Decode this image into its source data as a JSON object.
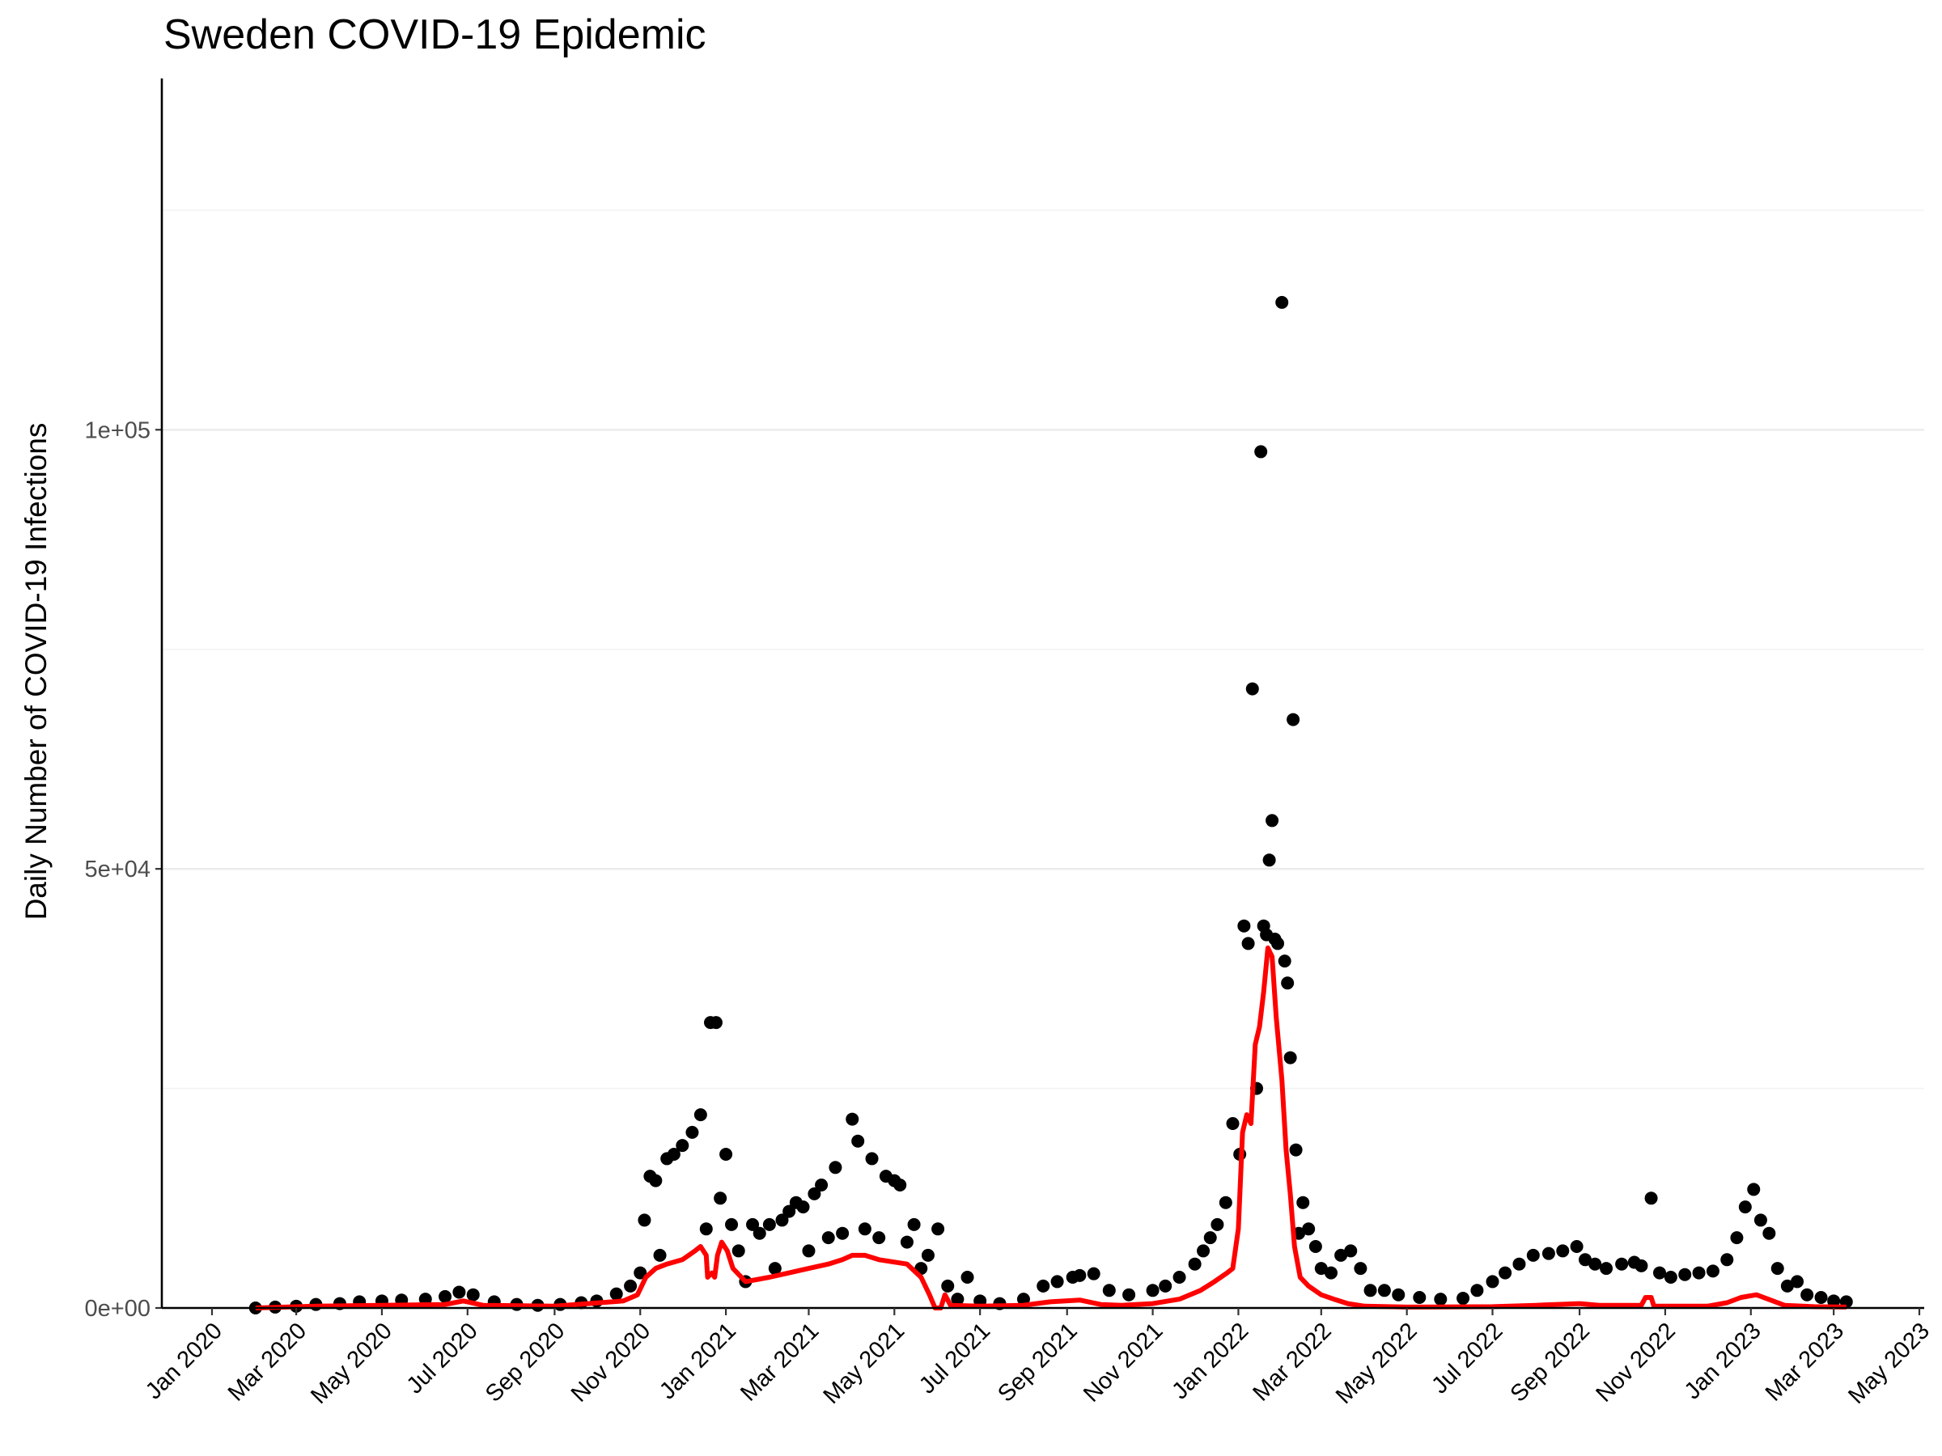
{
  "chart_data": {
    "type": "scatter",
    "title": "Sweden COVID-19 Epidemic",
    "ylabel": "Daily Number of COVID-19 Infections",
    "xlabel": "",
    "xlim": [
      "2020-01-01",
      "2023-05-01"
    ],
    "ylim": [
      0,
      140000
    ],
    "y_ticks": [
      {
        "value": 0,
        "label": "0e+00"
      },
      {
        "value": 50000,
        "label": "5e+04"
      },
      {
        "value": 100000,
        "label": "1e+05"
      }
    ],
    "y_minor": [
      25000,
      75000,
      125000
    ],
    "x_ticks": [
      {
        "date": "2020-01-01",
        "label": "Jan 2020"
      },
      {
        "date": "2020-03-01",
        "label": "Mar 2020"
      },
      {
        "date": "2020-05-01",
        "label": "May 2020"
      },
      {
        "date": "2020-07-01",
        "label": "Jul 2020"
      },
      {
        "date": "2020-09-01",
        "label": "Sep 2020"
      },
      {
        "date": "2020-11-01",
        "label": "Nov 2020"
      },
      {
        "date": "2021-01-01",
        "label": "Jan 2021"
      },
      {
        "date": "2021-03-01",
        "label": "Mar 2021"
      },
      {
        "date": "2021-05-01",
        "label": "May 2021"
      },
      {
        "date": "2021-07-01",
        "label": "Jul 2021"
      },
      {
        "date": "2021-09-01",
        "label": "Sep 2021"
      },
      {
        "date": "2021-11-01",
        "label": "Nov 2021"
      },
      {
        "date": "2022-01-01",
        "label": "Jan 2022"
      },
      {
        "date": "2022-03-01",
        "label": "Mar 2022"
      },
      {
        "date": "2022-05-01",
        "label": "May 2022"
      },
      {
        "date": "2022-07-01",
        "label": "Jul 2022"
      },
      {
        "date": "2022-09-01",
        "label": "Sep 2022"
      },
      {
        "date": "2022-11-01",
        "label": "Nov 2022"
      },
      {
        "date": "2023-01-01",
        "label": "Jan 2023"
      },
      {
        "date": "2023-03-01",
        "label": "Mar 2023"
      },
      {
        "date": "2023-05-01",
        "label": "May 2023"
      }
    ],
    "grid": "horizontal",
    "series": [
      {
        "kind": "points",
        "color": "#000000",
        "points": [
          [
            "2020-02-01",
            0
          ],
          [
            "2020-02-15",
            100
          ],
          [
            "2020-03-01",
            200
          ],
          [
            "2020-03-15",
            400
          ],
          [
            "2020-04-01",
            500
          ],
          [
            "2020-04-15",
            700
          ],
          [
            "2020-05-01",
            800
          ],
          [
            "2020-05-15",
            900
          ],
          [
            "2020-06-01",
            1000
          ],
          [
            "2020-06-15",
            1300
          ],
          [
            "2020-06-25",
            1800
          ],
          [
            "2020-07-05",
            1500
          ],
          [
            "2020-07-20",
            700
          ],
          [
            "2020-08-05",
            400
          ],
          [
            "2020-08-20",
            300
          ],
          [
            "2020-09-05",
            400
          ],
          [
            "2020-09-20",
            600
          ],
          [
            "2020-10-01",
            800
          ],
          [
            "2020-10-15",
            1600
          ],
          [
            "2020-10-25",
            2500
          ],
          [
            "2020-11-01",
            4000
          ],
          [
            "2020-11-04",
            10000
          ],
          [
            "2020-11-08",
            15000
          ],
          [
            "2020-11-12",
            14500
          ],
          [
            "2020-11-15",
            6000
          ],
          [
            "2020-11-20",
            17000
          ],
          [
            "2020-11-25",
            17500
          ],
          [
            "2020-12-01",
            18500
          ],
          [
            "2020-12-08",
            20000
          ],
          [
            "2020-12-14",
            22000
          ],
          [
            "2020-12-18",
            9000
          ],
          [
            "2020-12-21",
            32500
          ],
          [
            "2020-12-25",
            32500
          ],
          [
            "2020-12-28",
            12500
          ],
          [
            "2021-01-01",
            17500
          ],
          [
            "2021-01-05",
            9500
          ],
          [
            "2021-01-10",
            6500
          ],
          [
            "2021-01-15",
            3000
          ],
          [
            "2021-01-20",
            9500
          ],
          [
            "2021-01-25",
            8500
          ],
          [
            "2021-02-01",
            9500
          ],
          [
            "2021-02-05",
            4500
          ],
          [
            "2021-02-10",
            10000
          ],
          [
            "2021-02-15",
            11000
          ],
          [
            "2021-02-20",
            12000
          ],
          [
            "2021-02-25",
            11500
          ],
          [
            "2021-03-01",
            6500
          ],
          [
            "2021-03-05",
            13000
          ],
          [
            "2021-03-10",
            14000
          ],
          [
            "2021-03-15",
            8000
          ],
          [
            "2021-03-20",
            16000
          ],
          [
            "2021-03-25",
            8500
          ],
          [
            "2021-04-01",
            21500
          ],
          [
            "2021-04-05",
            19000
          ],
          [
            "2021-04-10",
            9000
          ],
          [
            "2021-04-15",
            17000
          ],
          [
            "2021-04-20",
            8000
          ],
          [
            "2021-04-25",
            15000
          ],
          [
            "2021-05-01",
            14500
          ],
          [
            "2021-05-05",
            14000
          ],
          [
            "2021-05-10",
            7500
          ],
          [
            "2021-05-15",
            9500
          ],
          [
            "2021-05-20",
            4500
          ],
          [
            "2021-05-25",
            6000
          ],
          [
            "2021-06-01",
            9000
          ],
          [
            "2021-06-08",
            2500
          ],
          [
            "2021-06-15",
            1000
          ],
          [
            "2021-06-22",
            3500
          ],
          [
            "2021-07-01",
            800
          ],
          [
            "2021-07-15",
            500
          ],
          [
            "2021-08-01",
            1000
          ],
          [
            "2021-08-15",
            2500
          ],
          [
            "2021-08-25",
            3000
          ],
          [
            "2021-09-05",
            3500
          ],
          [
            "2021-09-10",
            3700
          ],
          [
            "2021-09-20",
            3900
          ],
          [
            "2021-10-01",
            2000
          ],
          [
            "2021-10-15",
            1500
          ],
          [
            "2021-11-01",
            2000
          ],
          [
            "2021-11-10",
            2500
          ],
          [
            "2021-11-20",
            3500
          ],
          [
            "2021-12-01",
            5000
          ],
          [
            "2021-12-07",
            6500
          ],
          [
            "2021-12-12",
            8000
          ],
          [
            "2021-12-17",
            9500
          ],
          [
            "2021-12-23",
            12000
          ],
          [
            "2021-12-28",
            21000
          ],
          [
            "2022-01-02",
            17500
          ],
          [
            "2022-01-05",
            43500
          ],
          [
            "2022-01-08",
            41500
          ],
          [
            "2022-01-11",
            70500
          ],
          [
            "2022-01-14",
            25000
          ],
          [
            "2022-01-17",
            97500
          ],
          [
            "2022-01-19",
            43500
          ],
          [
            "2022-01-21",
            42500
          ],
          [
            "2022-01-23",
            51000
          ],
          [
            "2022-01-25",
            55500
          ],
          [
            "2022-01-27",
            42000
          ],
          [
            "2022-01-29",
            41500
          ],
          [
            "2022-02-01",
            114500
          ],
          [
            "2022-02-03",
            39500
          ],
          [
            "2022-02-05",
            37000
          ],
          [
            "2022-02-07",
            28500
          ],
          [
            "2022-02-09",
            67000
          ],
          [
            "2022-02-11",
            18000
          ],
          [
            "2022-02-13",
            8500
          ],
          [
            "2022-02-16",
            12000
          ],
          [
            "2022-02-20",
            9000
          ],
          [
            "2022-02-25",
            7000
          ],
          [
            "2022-03-01",
            4500
          ],
          [
            "2022-03-08",
            4000
          ],
          [
            "2022-03-15",
            6000
          ],
          [
            "2022-03-22",
            6500
          ],
          [
            "2022-03-29",
            4500
          ],
          [
            "2022-04-05",
            2000
          ],
          [
            "2022-04-15",
            2000
          ],
          [
            "2022-04-25",
            1500
          ],
          [
            "2022-05-10",
            1200
          ],
          [
            "2022-05-25",
            1000
          ],
          [
            "2022-06-10",
            1100
          ],
          [
            "2022-06-20",
            2000
          ],
          [
            "2022-07-01",
            3000
          ],
          [
            "2022-07-10",
            4000
          ],
          [
            "2022-07-20",
            5000
          ],
          [
            "2022-07-30",
            6000
          ],
          [
            "2022-08-10",
            6200
          ],
          [
            "2022-08-20",
            6500
          ],
          [
            "2022-08-30",
            7000
          ],
          [
            "2022-09-05",
            5500
          ],
          [
            "2022-09-12",
            5000
          ],
          [
            "2022-09-20",
            4500
          ],
          [
            "2022-10-01",
            5000
          ],
          [
            "2022-10-10",
            5200
          ],
          [
            "2022-10-15",
            4800
          ],
          [
            "2022-10-22",
            12500
          ],
          [
            "2022-10-28",
            4000
          ],
          [
            "2022-11-05",
            3500
          ],
          [
            "2022-11-15",
            3800
          ],
          [
            "2022-11-25",
            4000
          ],
          [
            "2022-12-05",
            4200
          ],
          [
            "2022-12-15",
            5500
          ],
          [
            "2022-12-22",
            8000
          ],
          [
            "2022-12-28",
            11500
          ],
          [
            "2023-01-03",
            13500
          ],
          [
            "2023-01-08",
            10000
          ],
          [
            "2023-01-14",
            8500
          ],
          [
            "2023-01-20",
            4500
          ],
          [
            "2023-01-27",
            2500
          ],
          [
            "2023-02-03",
            3000
          ],
          [
            "2023-02-10",
            1500
          ],
          [
            "2023-02-20",
            1200
          ],
          [
            "2023-03-01",
            800
          ],
          [
            "2023-03-10",
            700
          ]
        ]
      },
      {
        "kind": "line",
        "color": "#ff0000",
        "points": [
          [
            "2020-02-01",
            0
          ],
          [
            "2020-03-15",
            200
          ],
          [
            "2020-06-15",
            400
          ],
          [
            "2020-06-28",
            800
          ],
          [
            "2020-07-12",
            300
          ],
          [
            "2020-09-01",
            200
          ],
          [
            "2020-10-20",
            800
          ],
          [
            "2020-10-30",
            1500
          ],
          [
            "2020-11-05",
            3500
          ],
          [
            "2020-11-12",
            4500
          ],
          [
            "2020-11-20",
            5000
          ],
          [
            "2020-12-01",
            5500
          ],
          [
            "2020-12-10",
            6500
          ],
          [
            "2020-12-14",
            7000
          ],
          [
            "2020-12-18",
            6000
          ],
          [
            "2020-12-19",
            3500
          ],
          [
            "2020-12-22",
            4000
          ],
          [
            "2020-12-24",
            3500
          ],
          [
            "2020-12-26",
            6000
          ],
          [
            "2020-12-29",
            7500
          ],
          [
            "2021-01-02",
            6500
          ],
          [
            "2021-01-06",
            4500
          ],
          [
            "2021-01-15",
            3000
          ],
          [
            "2021-02-01",
            3500
          ],
          [
            "2021-02-15",
            4000
          ],
          [
            "2021-03-01",
            4500
          ],
          [
            "2021-03-15",
            5000
          ],
          [
            "2021-03-25",
            5500
          ],
          [
            "2021-04-01",
            6000
          ],
          [
            "2021-04-10",
            6000
          ],
          [
            "2021-04-20",
            5500
          ],
          [
            "2021-05-10",
            5000
          ],
          [
            "2021-05-20",
            3500
          ],
          [
            "2021-05-26",
            1500
          ],
          [
            "2021-05-30",
            0
          ],
          [
            "2021-06-03",
            0
          ],
          [
            "2021-06-06",
            1500
          ],
          [
            "2021-06-10",
            300
          ],
          [
            "2021-07-01",
            200
          ],
          [
            "2021-08-01",
            300
          ],
          [
            "2021-08-20",
            700
          ],
          [
            "2021-09-10",
            900
          ],
          [
            "2021-09-25",
            400
          ],
          [
            "2021-10-10",
            300
          ],
          [
            "2021-11-01",
            500
          ],
          [
            "2021-11-20",
            1000
          ],
          [
            "2021-12-05",
            2000
          ],
          [
            "2021-12-15",
            3000
          ],
          [
            "2021-12-24",
            4000
          ],
          [
            "2021-12-28",
            4500
          ],
          [
            "2022-01-01",
            9000
          ],
          [
            "2022-01-04",
            20000
          ],
          [
            "2022-01-07",
            22000
          ],
          [
            "2022-01-10",
            21000
          ],
          [
            "2022-01-13",
            30000
          ],
          [
            "2022-01-16",
            32000
          ],
          [
            "2022-01-19",
            36000
          ],
          [
            "2022-01-22",
            41000
          ],
          [
            "2022-01-25",
            40000
          ],
          [
            "2022-01-28",
            33000
          ],
          [
            "2022-02-01",
            26000
          ],
          [
            "2022-02-04",
            18000
          ],
          [
            "2022-02-07",
            13000
          ],
          [
            "2022-02-10",
            7000
          ],
          [
            "2022-02-14",
            3500
          ],
          [
            "2022-02-20",
            2500
          ],
          [
            "2022-03-01",
            1500
          ],
          [
            "2022-03-10",
            1000
          ],
          [
            "2022-03-20",
            500
          ],
          [
            "2022-04-01",
            200
          ],
          [
            "2022-05-01",
            100
          ],
          [
            "2022-07-01",
            150
          ],
          [
            "2022-08-01",
            300
          ],
          [
            "2022-09-01",
            500
          ],
          [
            "2022-09-15",
            300
          ],
          [
            "2022-10-15",
            300
          ],
          [
            "2022-10-18",
            1200
          ],
          [
            "2022-10-22",
            1200
          ],
          [
            "2022-10-24",
            200
          ],
          [
            "2022-12-01",
            200
          ],
          [
            "2022-12-15",
            600
          ],
          [
            "2022-12-25",
            1200
          ],
          [
            "2023-01-05",
            1500
          ],
          [
            "2023-01-15",
            900
          ],
          [
            "2023-01-25",
            300
          ],
          [
            "2023-02-15",
            150
          ],
          [
            "2023-03-10",
            100
          ]
        ]
      }
    ]
  }
}
